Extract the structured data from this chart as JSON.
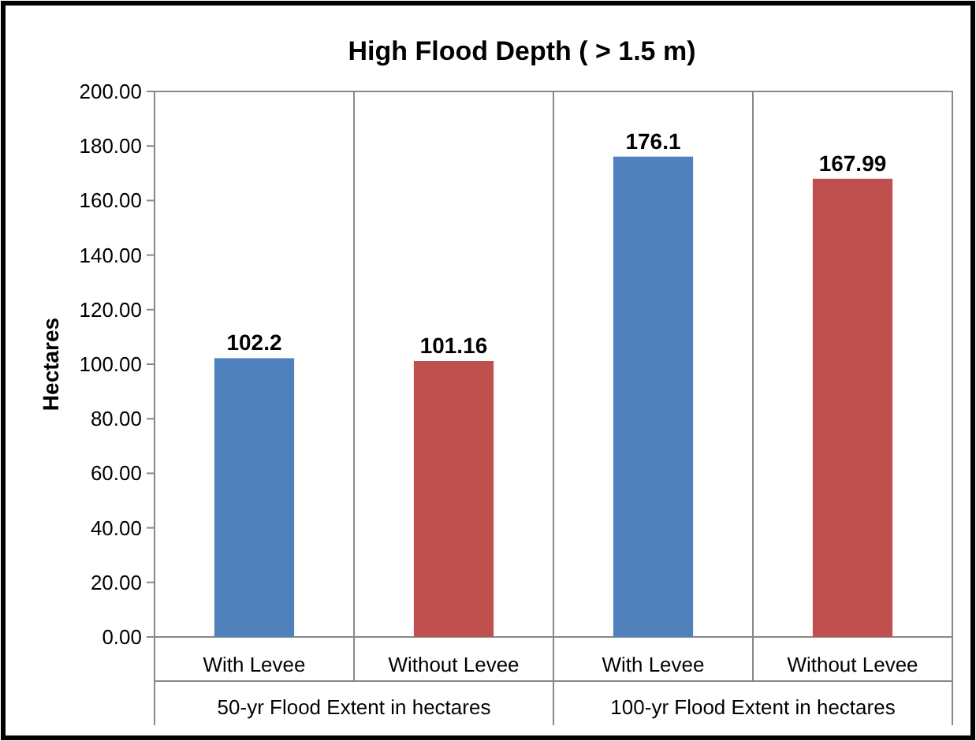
{
  "chart_data": {
    "type": "bar",
    "title": "High Flood Depth ( > 1.5 m)",
    "ylabel": "Hectares",
    "categories": [
      "With Levee",
      "Without Levee",
      "With Levee",
      "Without Levee"
    ],
    "values": [
      102.2,
      101.16,
      176.1,
      167.99
    ],
    "colors": [
      "#4f81bd",
      "#c0504d",
      "#4f81bd",
      "#c0504d"
    ],
    "data_labels": true,
    "grid": "x",
    "ylim": [
      0,
      200
    ],
    "yticks": [
      {
        "value": 0,
        "label": "0.00"
      },
      {
        "value": 20,
        "label": "20.00"
      },
      {
        "value": 40,
        "label": "40.00"
      },
      {
        "value": 60,
        "label": "60.00"
      },
      {
        "value": 80,
        "label": "80.00"
      },
      {
        "value": 100,
        "label": "100.00"
      },
      {
        "value": 120,
        "label": "120.00"
      },
      {
        "value": 140,
        "label": "140.00"
      },
      {
        "value": 160,
        "label": "160.00"
      },
      {
        "value": 180,
        "label": "180.00"
      },
      {
        "value": 200,
        "label": "200.00"
      }
    ],
    "annotations": [
      "50-yr Flood Extent in hectares",
      "100-yr Flood Extent in hectares"
    ]
  }
}
